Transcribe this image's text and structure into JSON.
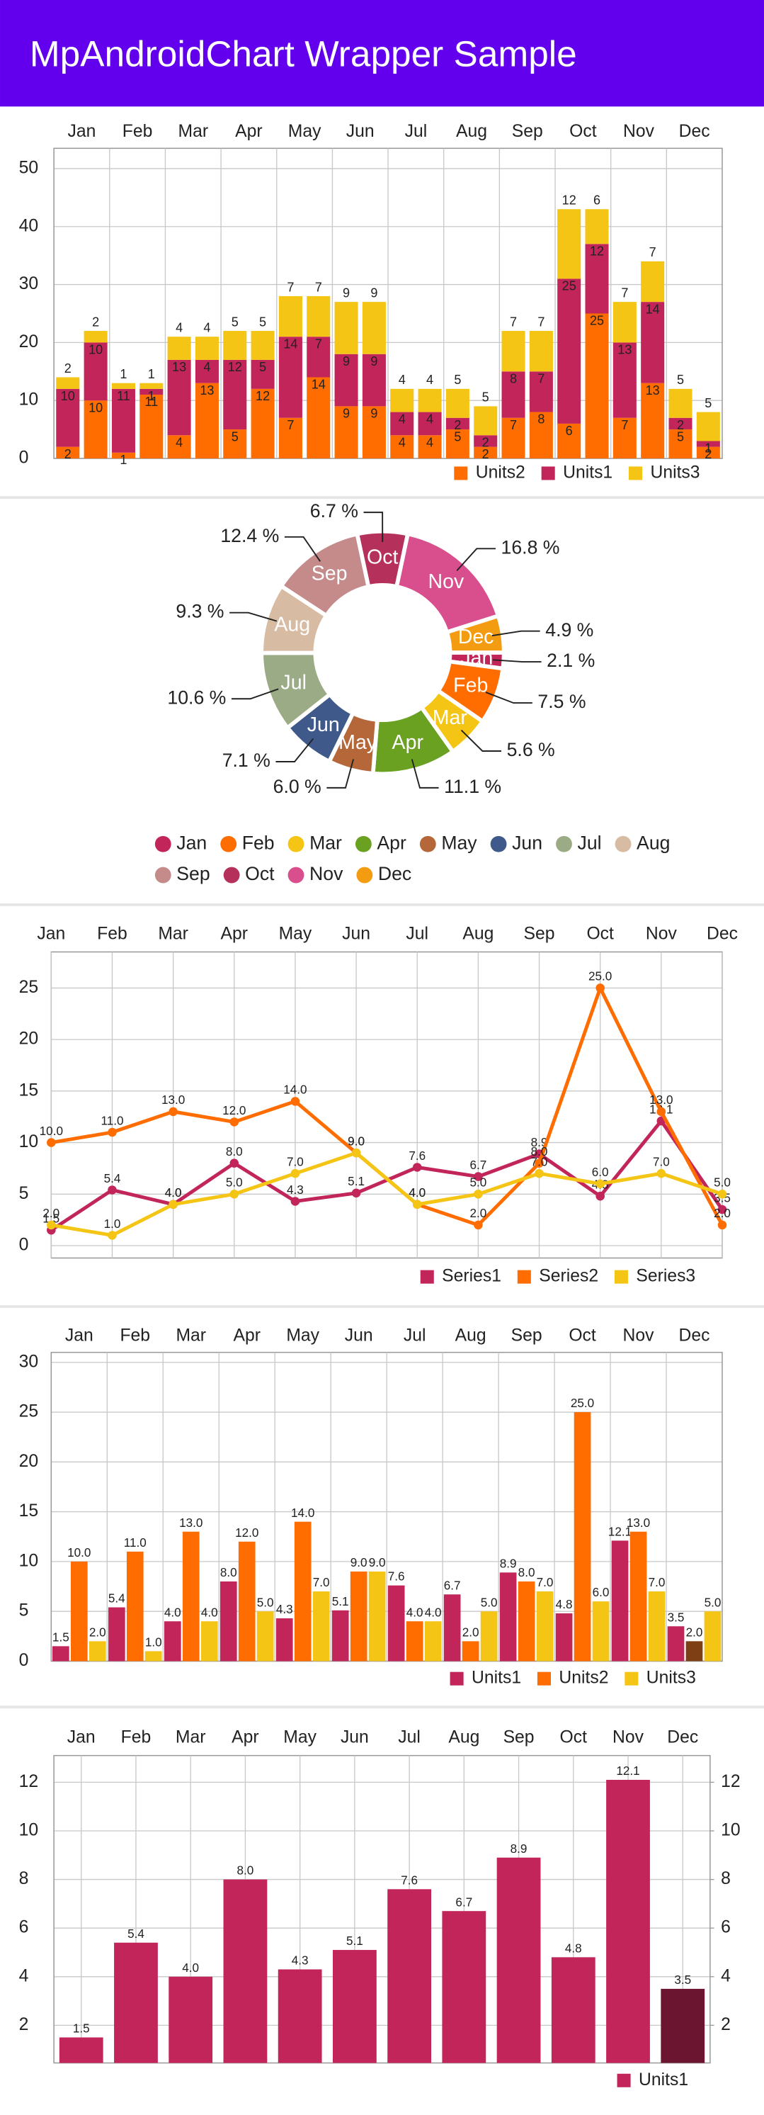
{
  "header": {
    "title": "MpAndroidChart Wrapper Sample"
  },
  "chart_data": [
    {
      "type": "bar",
      "stacked": true,
      "grid": true,
      "categories": [
        "Jan",
        null,
        "Feb",
        null,
        "Mar",
        null,
        "Apr",
        null,
        "May",
        null,
        "Jun",
        null,
        "Jul",
        null,
        "Aug",
        null,
        "Sep",
        null,
        "Oct",
        null,
        "Nov",
        null,
        "Dec",
        null
      ],
      "series": [
        {
          "name": "Units2",
          "color": "#FF6D00",
          "values": [
            2,
            10,
            1,
            11,
            4,
            13,
            5,
            12,
            7,
            14,
            9,
            9,
            4,
            4,
            5,
            2,
            7,
            8,
            6,
            25,
            7,
            13,
            5,
            2
          ]
        },
        {
          "name": "Units1",
          "color": "#C2255A",
          "values": [
            10,
            10,
            11,
            1,
            13,
            4,
            12,
            5,
            14,
            7,
            9,
            9,
            4,
            4,
            2,
            2,
            8,
            7,
            25,
            12,
            13,
            14,
            2,
            1
          ]
        },
        {
          "name": "Units3",
          "color": "#F4C514",
          "values": [
            2,
            2,
            1,
            1,
            4,
            4,
            5,
            5,
            7,
            7,
            9,
            9,
            4,
            4,
            5,
            5,
            7,
            7,
            12,
            6,
            7,
            7,
            5,
            5
          ]
        }
      ],
      "ylim": [
        0,
        53.5
      ],
      "yticks": [
        0,
        10,
        20,
        30,
        40,
        50
      ]
    },
    {
      "type": "doughnut",
      "categories": [
        "Jan",
        "Feb",
        "Mar",
        "Apr",
        "May",
        "Jun",
        "Jul",
        "Aug",
        "Sep",
        "Oct",
        "Nov",
        "Dec"
      ],
      "values": [
        2.1,
        7.5,
        5.6,
        11.1,
        6.0,
        7.1,
        10.6,
        9.3,
        12.4,
        6.7,
        16.8,
        4.9
      ],
      "value_labels": [
        "2.1 %",
        "7.5 %",
        "5.6 %",
        "11.1 %",
        "6.0 %",
        "7.1 %",
        "10.6 %",
        "9.3 %",
        "12.4 %",
        "6.7 %",
        "16.8 %",
        "4.9 %"
      ],
      "colors": [
        "#C2255A",
        "#FF6D00",
        "#F4C514",
        "#6AA121",
        "#B5673A",
        "#3F5A8A",
        "#9AAB85",
        "#D8BBA3",
        "#C58A8A",
        "#B5305A",
        "#D94E8C",
        "#F39C12"
      ]
    },
    {
      "type": "line",
      "grid": true,
      "categories": [
        "Jan",
        "Feb",
        "Mar",
        "Apr",
        "May",
        "Jun",
        "Jul",
        "Aug",
        "Sep",
        "Oct",
        "Nov",
        "Dec"
      ],
      "series": [
        {
          "name": "Series1",
          "color": "#C2255A",
          "values": [
            1.5,
            5.4,
            4.0,
            8.0,
            4.3,
            5.1,
            7.6,
            6.7,
            8.9,
            4.8,
            12.1,
            3.5
          ],
          "value_labels": [
            "1.5",
            "5.4",
            "4.0",
            "8.0",
            "4.3",
            "5.1",
            "7.6",
            "6.7",
            "8.9",
            "4.8",
            "12.1",
            "3.5"
          ]
        },
        {
          "name": "Series2",
          "color": "#FF6D00",
          "values": [
            10,
            11,
            13,
            12,
            14,
            9,
            4,
            2,
            8,
            25,
            13,
            2
          ],
          "value_labels": [
            "10.0",
            "11.0",
            "13.0",
            "12.0",
            "14.0",
            "9.0",
            "4.0",
            "2.0",
            "8.0",
            "25.0",
            "13.0",
            "2.0"
          ]
        },
        {
          "name": "Series3",
          "color": "#F4C514",
          "values": [
            2,
            1,
            4,
            5,
            7,
            9,
            4,
            5,
            7,
            6,
            7,
            5
          ],
          "value_labels": [
            "2.0",
            "1.0",
            "4.0",
            "5.0",
            "7.0",
            "9.0",
            "4.0",
            "5.0",
            "7.0",
            "6.0",
            "7.0",
            "5.0"
          ]
        }
      ],
      "ylim": [
        -1.2,
        28.5
      ],
      "yticks": [
        0,
        5,
        10,
        15,
        20,
        25
      ]
    },
    {
      "type": "bar",
      "grid": true,
      "categories": [
        "Jan",
        "Feb",
        "Mar",
        "Apr",
        "May",
        "Jun",
        "Jul",
        "Aug",
        "Sep",
        "Oct",
        "Nov",
        "Dec"
      ],
      "series": [
        {
          "name": "Units1",
          "color": "#C2255A",
          "values": [
            1.5,
            5.4,
            4.0,
            8.0,
            4.3,
            5.1,
            7.6,
            6.7,
            8.9,
            4.8,
            12.1,
            3.5
          ],
          "value_labels": [
            "1.5",
            "5.4",
            "4.0",
            "8.0",
            "4.3",
            "5.1",
            "7.6",
            "6.7",
            "8.9",
            "4.8",
            "12.1",
            "3.5"
          ]
        },
        {
          "name": "Units2",
          "color": "#FF6D00",
          "values": [
            10,
            11,
            13,
            12,
            14,
            9,
            4,
            2,
            8,
            25,
            13,
            2
          ],
          "value_labels": [
            "10.0",
            "11.0",
            "13.0",
            "12.0",
            "14.0",
            "9.0",
            "4.0",
            "2.0",
            "8.0",
            "25.0",
            "13.0",
            "2.0"
          ],
          "highlight": {
            "index": 11,
            "color": "#7E3F14"
          }
        },
        {
          "name": "Units3",
          "color": "#F4C514",
          "values": [
            2,
            1,
            4,
            5,
            7,
            9,
            4,
            5,
            7,
            6,
            7,
            5
          ],
          "value_labels": [
            "2.0",
            "1.0",
            "4.0",
            "5.0",
            "7.0",
            "9.0",
            "4.0",
            "5.0",
            "7.0",
            "6.0",
            "7.0",
            "5.0"
          ]
        }
      ],
      "ylim": [
        0,
        31
      ],
      "yticks": [
        0,
        5,
        10,
        15,
        20,
        25,
        30
      ]
    },
    {
      "type": "bar",
      "grid": true,
      "categories": [
        "Jan",
        "Feb",
        "Mar",
        "Apr",
        "May",
        "Jun",
        "Jul",
        "Aug",
        "Sep",
        "Oct",
        "Nov",
        "Dec"
      ],
      "series": [
        {
          "name": "Units1",
          "color": "#C2255A",
          "values": [
            1.5,
            5.4,
            4.0,
            8.0,
            4.3,
            5.1,
            7.6,
            6.7,
            8.9,
            4.8,
            12.1,
            3.5
          ],
          "value_labels": [
            "1.5",
            "5.4",
            "4.0",
            "8.0",
            "4.3",
            "5.1",
            "7.6",
            "6.7",
            "8.9",
            "4.8",
            "12.1",
            "3.5"
          ],
          "highlight": {
            "index": 11,
            "color": "#6B1530"
          }
        }
      ],
      "ylim": [
        0.45,
        13.1
      ],
      "yticks": [
        2,
        4,
        6,
        8,
        10,
        12
      ],
      "y2lim": [
        0.45,
        13.1
      ],
      "y2ticks": [
        2,
        4,
        6,
        8,
        10,
        12
      ]
    }
  ]
}
